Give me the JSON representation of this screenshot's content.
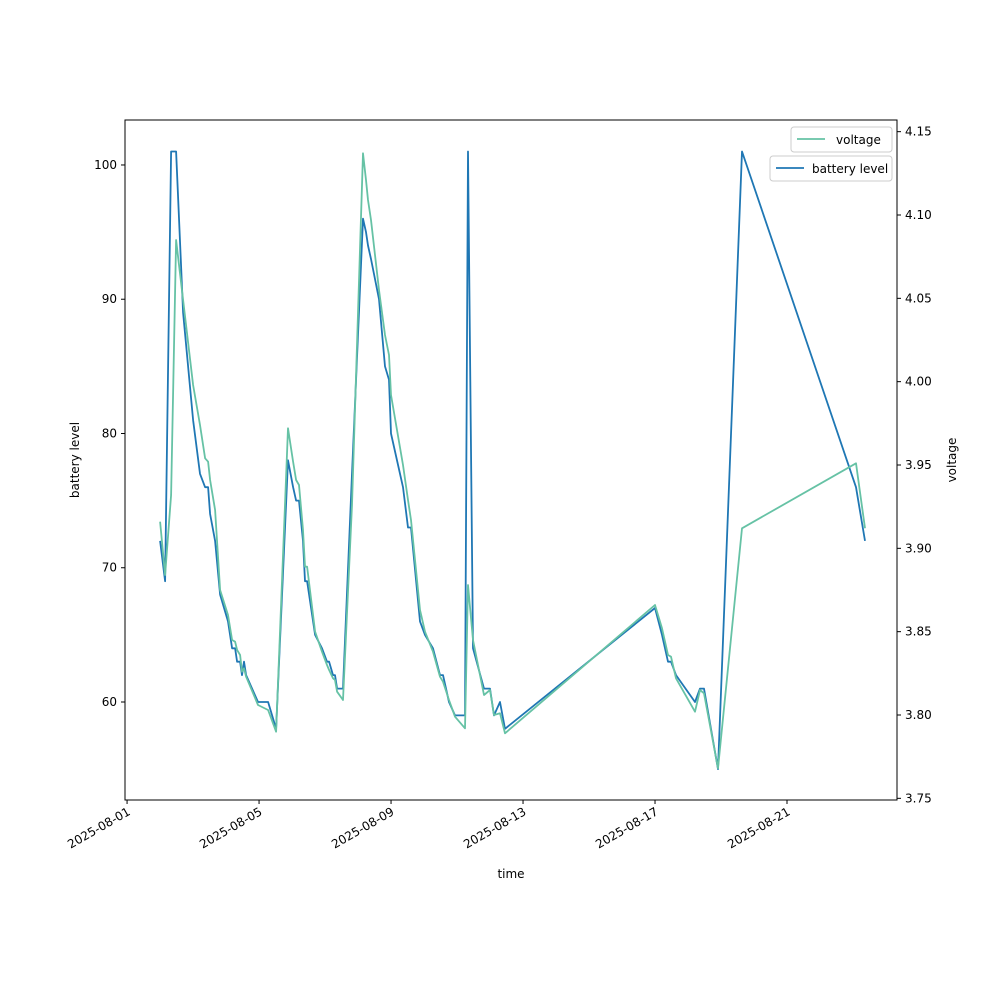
{
  "chart_data": {
    "type": "line",
    "xlabel": "time",
    "ylabel": "battery level",
    "y2label": "voltage",
    "xlim": [
      "2025-07-31T22:30",
      "2025-08-24T08:00"
    ],
    "ylim": [
      52.7,
      103.35
    ],
    "y2lim": [
      3.749,
      4.157
    ],
    "x_ticks": [
      "2025-08-01",
      "2025-08-05",
      "2025-08-09",
      "2025-08-13",
      "2025-08-17",
      "2025-08-21"
    ],
    "y_ticks": [
      60,
      70,
      80,
      90,
      100
    ],
    "y2_ticks": [
      "3.75",
      "3.80",
      "3.85",
      "3.90",
      "3.95",
      "4.00",
      "4.05",
      "4.10",
      "4.15"
    ],
    "grid": false,
    "legend_placement": "top-right",
    "colors": {
      "battery": "#1f77b4",
      "voltage": "#66c2a5"
    },
    "x": [
      "2025-08-02T00:00",
      "2025-08-02T03:40",
      "2025-08-02T08:00",
      "2025-08-02T11:38",
      "2025-08-02T16:44",
      "2025-08-03T00:00",
      "2025-08-03T05:05",
      "2025-08-03T08:44",
      "2025-08-03T10:55",
      "2025-08-03T12:22",
      "2025-08-03T16:00",
      "2025-08-03T19:38",
      "2025-08-04T01:27",
      "2025-08-04T04:22",
      "2025-08-04T06:33",
      "2025-08-04T08:00",
      "2025-08-04T10:11",
      "2025-08-04T11:38",
      "2025-08-04T13:05",
      "2025-08-04T14:33",
      "2025-08-04T23:16",
      "2025-08-05T06:33",
      "2025-08-05T12:22",
      "2025-08-05T21:05",
      "2025-08-06T00:44",
      "2025-08-06T02:55",
      "2025-08-06T05:05",
      "2025-08-06T08:00",
      "2025-08-06T09:27",
      "2025-08-06T10:55",
      "2025-08-06T16:44",
      "2025-08-06T21:49",
      "2025-08-07T01:27",
      "2025-08-07T02:55",
      "2025-08-07T05:49",
      "2025-08-07T07:16",
      "2025-08-07T08:44",
      "2025-08-07T13:05",
      "2025-08-07T19:38",
      "2025-08-08T03:38",
      "2025-08-08T05:49",
      "2025-08-08T07:16",
      "2025-08-08T09:27",
      "2025-08-08T15:16",
      "2025-08-08T19:38",
      "2025-08-08T22:33",
      "2025-08-09T00:00",
      "2025-08-09T08:44",
      "2025-08-09T12:22",
      "2025-08-09T14:33",
      "2025-08-09T21:05",
      "2025-08-10T00:44",
      "2025-08-10T06:33",
      "2025-08-10T11:38",
      "2025-08-10T13:49",
      "2025-08-10T18:11",
      "2025-08-10T22:33",
      "2025-08-11T05:49",
      "2025-08-11T08:00",
      "2025-08-11T11:38",
      "2025-08-11T19:38",
      "2025-08-12T00:00",
      "2025-08-12T02:55",
      "2025-08-12T07:16",
      "2025-08-12T10:55",
      "2025-08-17T00:00",
      "2025-08-17T05:05",
      "2025-08-17T09:27",
      "2025-08-17T11:38",
      "2025-08-17T15:16",
      "2025-08-18T05:05",
      "2025-08-18T08:44",
      "2025-08-18T11:38",
      "2025-08-18T21:49",
      "2025-08-19T15:16",
      "2025-08-23T02:11",
      "2025-08-23T08:44"
    ],
    "series": [
      {
        "name": "battery level",
        "axis": "left",
        "values": [
          72,
          69,
          101,
          101,
          89,
          81,
          77,
          76,
          76,
          74,
          72,
          68,
          66,
          64,
          64,
          63,
          63,
          62,
          63,
          62,
          60,
          60,
          58,
          78,
          76,
          75,
          75,
          72,
          69,
          69,
          65,
          64,
          63,
          63,
          62,
          62,
          61,
          61,
          77,
          96,
          95,
          94,
          93,
          90,
          85,
          84,
          80,
          76,
          73,
          73,
          66,
          65,
          64,
          62,
          62,
          60,
          59,
          59,
          101,
          64,
          61,
          61,
          59,
          60,
          58,
          67,
          65,
          63,
          63,
          62,
          60,
          61,
          61,
          55,
          101,
          76,
          72
        ]
      },
      {
        "name": "voltage",
        "axis": "right",
        "values": [
          3.916,
          3.884,
          3.932,
          4.085,
          4.049,
          3.998,
          3.974,
          3.954,
          3.952,
          3.941,
          3.923,
          3.875,
          3.86,
          3.845,
          3.844,
          3.839,
          3.836,
          3.826,
          3.828,
          3.823,
          3.806,
          3.803,
          3.79,
          3.972,
          3.952,
          3.941,
          3.938,
          3.911,
          3.889,
          3.889,
          3.85,
          3.838,
          3.83,
          3.827,
          3.822,
          3.821,
          3.814,
          3.809,
          3.926,
          4.137,
          4.121,
          4.109,
          4.097,
          4.055,
          4.028,
          4.016,
          3.992,
          3.95,
          3.929,
          3.917,
          3.863,
          3.85,
          3.838,
          3.823,
          3.82,
          3.809,
          3.799,
          3.792,
          3.878,
          3.845,
          3.812,
          3.815,
          3.8,
          3.801,
          3.789,
          3.866,
          3.852,
          3.836,
          3.835,
          3.822,
          3.802,
          3.815,
          3.813,
          3.768,
          3.912,
          3.951,
          3.912
        ]
      }
    ]
  }
}
